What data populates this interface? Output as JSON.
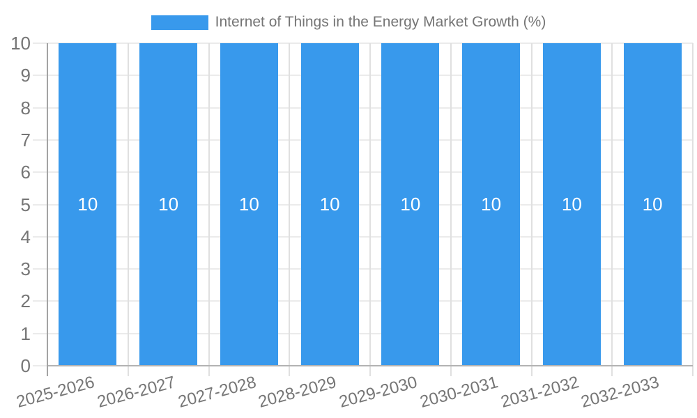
{
  "colors": {
    "bar": "#3899EC",
    "grid": "#ebebeb",
    "boundary": "#e0e0e0",
    "axis_y": "#a3a3a3",
    "axis_x": "#b3b3b3",
    "text": "#757575",
    "bar_label": "#ffffff"
  },
  "legend": {
    "label": "Internet of Things in the Energy Market Growth (%)"
  },
  "chart_data": {
    "type": "bar",
    "title": "Internet of Things in the Energy Market Growth (%)",
    "xlabel": "",
    "ylabel": "",
    "categories": [
      "2025-2026",
      "2026-2027",
      "2027-2028",
      "2028-2029",
      "2029-2030",
      "2030-2031",
      "2031-2032",
      "2032-2033"
    ],
    "series": [
      {
        "name": "Internet of Things in the Energy Market Growth (%)",
        "values": [
          10,
          10,
          10,
          10,
          10,
          10,
          10,
          10
        ]
      }
    ],
    "value_labels": [
      "10",
      "10",
      "10",
      "10",
      "10",
      "10",
      "10",
      "10"
    ],
    "ylim": [
      0,
      10
    ],
    "yticks": [
      0,
      1,
      2,
      3,
      4,
      5,
      6,
      7,
      8,
      9,
      10
    ],
    "grid": true,
    "legend_position": "top"
  }
}
